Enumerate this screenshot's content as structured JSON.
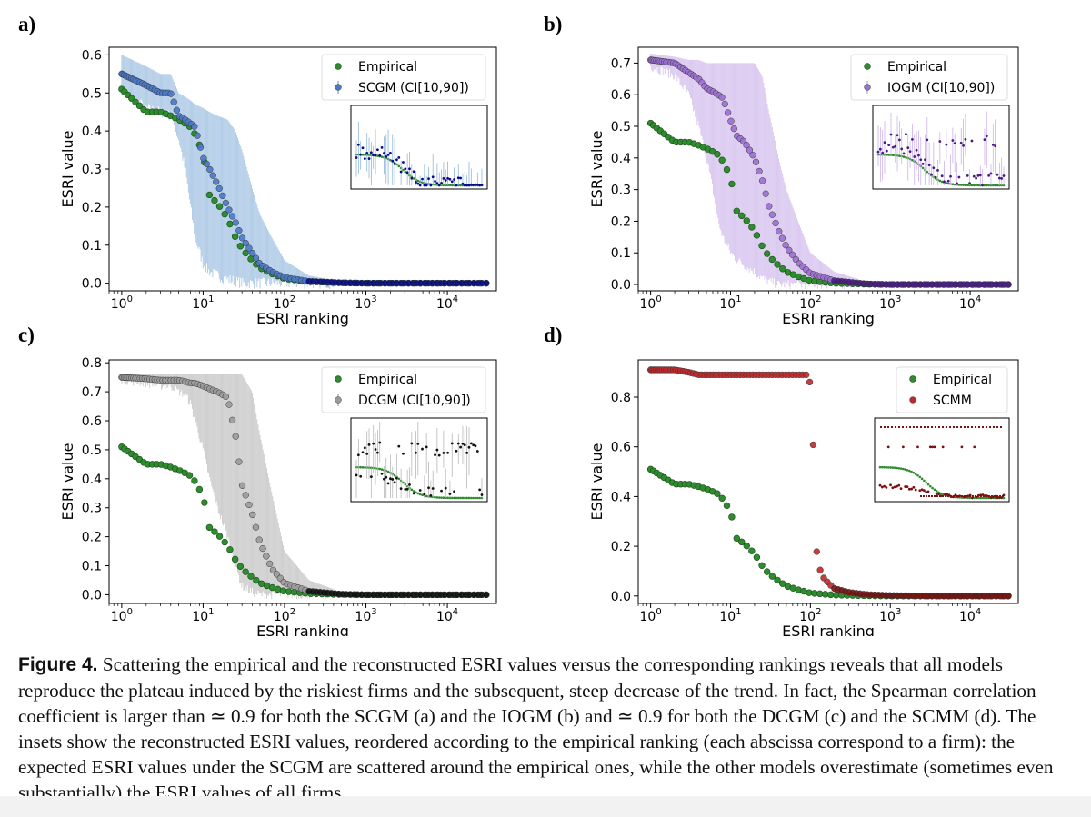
{
  "panel_labels": [
    "a)",
    "b)",
    "c)",
    "d)"
  ],
  "caption": {
    "label": "Figure 4.",
    "text": "Scattering the empirical and the reconstructed ESRI values versus the corresponding rankings reveals that all models reproduce the plateau induced by the riskiest firms and the subsequent, steep decrease of the trend. In fact, the Spearman correlation coefficient is larger than ≃ 0.9 for both the SCGM (a) and the IOGM (b) and ≃ 0.9 for both the DCGM (c) and the SCMM (d). The insets show the reconstructed ESRI values, reordered according to the empirical ranking (each abscissa correspond to a firm): the expected ESRI values under the SCGM are scattered around the empirical ones, while the other models overestimate (sometimes even substantially) the ESRI values of all firms."
  },
  "colors": {
    "empirical": "#2e8b2e",
    "scgm_point": "#4a78c8",
    "scgm_bar": "#8fb6dc",
    "scgm_dark": "#0a0a8c",
    "iogm_point": "#9b6fd0",
    "iogm_bar": "#cbb2ea",
    "iogm_dark": "#4b1a86",
    "dcgm_point": "#9a9a9a",
    "dcgm_bar": "#b8b8b8",
    "dcgm_dark": "#111111",
    "scmm_point": "#c0282b",
    "scmm_dark": "#7a1010"
  },
  "chart_data": [
    {
      "id": "a",
      "type": "scatter",
      "xlabel": "ESRI ranking",
      "ylabel": "ESRI value",
      "xscale": "log",
      "xlim": [
        0.7,
        40000
      ],
      "ylim": [
        -0.02,
        0.62
      ],
      "yticks": [
        0.0,
        0.1,
        0.2,
        0.3,
        0.4,
        0.5,
        0.6
      ],
      "ytick_labels": [
        "0.0",
        "0.1",
        "0.2",
        "0.3",
        "0.4",
        "0.5",
        "0.6"
      ],
      "xticks_exp": [
        "0",
        "1",
        "2",
        "3",
        "4"
      ],
      "legend": [
        "Empirical",
        "SCGM (CI[10,90])"
      ],
      "legend_position": "top-right",
      "series": [
        {
          "name": "Empirical",
          "x": [
            1,
            2,
            3,
            4,
            5,
            6,
            7,
            8,
            10,
            12,
            15,
            20,
            25,
            30,
            40,
            50,
            70,
            100,
            200,
            500,
            1000,
            3000,
            10000,
            30000
          ],
          "values": [
            0.51,
            0.45,
            0.45,
            0.44,
            0.43,
            0.42,
            0.41,
            0.39,
            0.34,
            0.23,
            0.21,
            0.17,
            0.12,
            0.09,
            0.06,
            0.04,
            0.025,
            0.012,
            0.004,
            0.001,
            0.0,
            0.0,
            0.0,
            0.0
          ]
        },
        {
          "name": "SCGM (CI[10,90])",
          "x": [
            1,
            2,
            3,
            4,
            5,
            6,
            7,
            8,
            10,
            12,
            15,
            20,
            25,
            30,
            40,
            50,
            70,
            100,
            200,
            500,
            1000,
            3000,
            10000,
            30000
          ],
          "values": [
            0.55,
            0.52,
            0.5,
            0.5,
            0.44,
            0.43,
            0.42,
            0.41,
            0.33,
            0.3,
            0.26,
            0.2,
            0.16,
            0.12,
            0.08,
            0.05,
            0.03,
            0.015,
            0.005,
            0.001,
            0.0,
            0.0,
            0.0,
            0.0
          ],
          "ci_low": [
            0.51,
            0.46,
            0.45,
            0.44,
            0.38,
            0.3,
            0.2,
            0.12,
            0.05,
            0.03,
            0.02,
            0.01,
            0.005,
            0.0,
            0.0,
            0.0,
            0.0,
            0.0,
            0.0,
            0.0,
            0.0,
            0.0,
            0.0,
            0.0
          ],
          "ci_high": [
            0.6,
            0.57,
            0.55,
            0.55,
            0.5,
            0.49,
            0.48,
            0.47,
            0.46,
            0.45,
            0.44,
            0.43,
            0.4,
            0.35,
            0.25,
            0.18,
            0.12,
            0.06,
            0.02,
            0.005,
            0.0,
            0.0,
            0.0,
            0.0
          ]
        }
      ]
    },
    {
      "id": "b",
      "type": "scatter",
      "xlabel": "ESRI ranking",
      "ylabel": "ESRI value",
      "xscale": "log",
      "xlim": [
        0.7,
        40000
      ],
      "ylim": [
        -0.02,
        0.75
      ],
      "yticks": [
        0.0,
        0.1,
        0.2,
        0.3,
        0.4,
        0.5,
        0.6,
        0.7
      ],
      "ytick_labels": [
        "0.0",
        "0.1",
        "0.2",
        "0.3",
        "0.4",
        "0.5",
        "0.6",
        "0.7"
      ],
      "xticks_exp": [
        "0",
        "1",
        "2",
        "3",
        "4"
      ],
      "legend": [
        "Empirical",
        "IOGM (CI[10,90])"
      ],
      "legend_position": "top-right",
      "series": [
        {
          "name": "Empirical",
          "x": [
            1,
            2,
            3,
            4,
            5,
            6,
            7,
            8,
            10,
            12,
            15,
            20,
            25,
            30,
            40,
            50,
            70,
            100,
            200,
            500,
            1000,
            3000,
            10000,
            30000
          ],
          "values": [
            0.51,
            0.45,
            0.45,
            0.44,
            0.43,
            0.42,
            0.41,
            0.39,
            0.34,
            0.23,
            0.21,
            0.17,
            0.12,
            0.09,
            0.06,
            0.04,
            0.025,
            0.012,
            0.004,
            0.001,
            0.0,
            0.0,
            0.0,
            0.0
          ]
        },
        {
          "name": "IOGM (CI[10,90])",
          "x": [
            1,
            2,
            3,
            4,
            5,
            6,
            7,
            8,
            10,
            12,
            15,
            20,
            25,
            30,
            40,
            50,
            70,
            100,
            200,
            500,
            1000,
            3000,
            10000,
            30000
          ],
          "values": [
            0.71,
            0.7,
            0.67,
            0.65,
            0.62,
            0.61,
            0.6,
            0.59,
            0.52,
            0.47,
            0.45,
            0.4,
            0.33,
            0.25,
            0.17,
            0.12,
            0.07,
            0.035,
            0.012,
            0.002,
            0.0,
            0.0,
            0.0,
            0.0
          ],
          "ci_low": [
            0.69,
            0.66,
            0.6,
            0.5,
            0.4,
            0.3,
            0.2,
            0.15,
            0.1,
            0.08,
            0.06,
            0.04,
            0.02,
            0.01,
            0.0,
            0.0,
            0.0,
            0.0,
            0.0,
            0.0,
            0.0,
            0.0,
            0.0,
            0.0
          ],
          "ci_high": [
            0.73,
            0.72,
            0.71,
            0.71,
            0.7,
            0.7,
            0.7,
            0.7,
            0.7,
            0.7,
            0.7,
            0.7,
            0.66,
            0.55,
            0.4,
            0.3,
            0.2,
            0.1,
            0.04,
            0.01,
            0.0,
            0.0,
            0.0,
            0.0
          ]
        }
      ]
    },
    {
      "id": "c",
      "type": "scatter",
      "xlabel": "ESRI ranking",
      "ylabel": "ESRI value",
      "xscale": "log",
      "xlim": [
        0.7,
        40000
      ],
      "ylim": [
        -0.03,
        0.81
      ],
      "yticks": [
        0.0,
        0.1,
        0.2,
        0.3,
        0.4,
        0.5,
        0.6,
        0.7,
        0.8
      ],
      "ytick_labels": [
        "0.0",
        "0.1",
        "0.2",
        "0.3",
        "0.4",
        "0.5",
        "0.6",
        "0.7",
        "0.8"
      ],
      "xticks_exp": [
        "0",
        "1",
        "2",
        "3",
        "4"
      ],
      "legend": [
        "Empirical",
        "DCGM (CI[10,90])"
      ],
      "legend_position": "top-right",
      "series": [
        {
          "name": "Empirical",
          "x": [
            1,
            2,
            3,
            4,
            5,
            6,
            7,
            8,
            10,
            12,
            15,
            20,
            25,
            30,
            40,
            50,
            70,
            100,
            200,
            500,
            1000,
            3000,
            10000,
            30000
          ],
          "values": [
            0.51,
            0.45,
            0.45,
            0.44,
            0.43,
            0.42,
            0.41,
            0.39,
            0.34,
            0.23,
            0.21,
            0.17,
            0.12,
            0.09,
            0.06,
            0.04,
            0.025,
            0.012,
            0.004,
            0.001,
            0.0,
            0.0,
            0.0,
            0.0
          ]
        },
        {
          "name": "DCGM (CI[10,90])",
          "x": [
            1,
            2,
            3,
            4,
            5,
            6,
            7,
            8,
            10,
            12,
            15,
            20,
            25,
            30,
            40,
            50,
            70,
            100,
            200,
            500,
            1000,
            3000,
            10000,
            30000
          ],
          "values": [
            0.75,
            0.745,
            0.74,
            0.74,
            0.74,
            0.735,
            0.73,
            0.73,
            0.72,
            0.71,
            0.7,
            0.68,
            0.55,
            0.38,
            0.28,
            0.18,
            0.09,
            0.04,
            0.012,
            0.002,
            0.0,
            0.0,
            0.0,
            0.0
          ],
          "ci_low": [
            0.74,
            0.73,
            0.72,
            0.72,
            0.7,
            0.69,
            0.66,
            0.6,
            0.5,
            0.4,
            0.3,
            0.2,
            0.1,
            0.03,
            0.01,
            0.0,
            0.0,
            0.0,
            0.0,
            0.0,
            0.0,
            0.0,
            0.0,
            0.0
          ],
          "ci_high": [
            0.76,
            0.76,
            0.76,
            0.76,
            0.76,
            0.76,
            0.76,
            0.76,
            0.76,
            0.76,
            0.76,
            0.76,
            0.76,
            0.76,
            0.7,
            0.55,
            0.35,
            0.15,
            0.05,
            0.01,
            0.0,
            0.0,
            0.0,
            0.0
          ]
        }
      ]
    },
    {
      "id": "d",
      "type": "scatter",
      "xlabel": "ESRI ranking",
      "ylabel": "ESRI value",
      "xscale": "log",
      "xlim": [
        0.7,
        40000
      ],
      "ylim": [
        -0.03,
        0.95
      ],
      "yticks": [
        0.0,
        0.2,
        0.4,
        0.6,
        0.8
      ],
      "ytick_labels": [
        "0.0",
        "0.2",
        "0.4",
        "0.6",
        "0.8"
      ],
      "xticks_exp": [
        "0",
        "1",
        "2",
        "3",
        "4"
      ],
      "legend": [
        "Empirical",
        "SCMM"
      ],
      "legend_position": "top-right",
      "series": [
        {
          "name": "Empirical",
          "x": [
            1,
            2,
            3,
            4,
            5,
            6,
            7,
            8,
            10,
            12,
            15,
            20,
            25,
            30,
            40,
            50,
            70,
            100,
            200,
            500,
            1000,
            3000,
            10000,
            30000
          ],
          "values": [
            0.51,
            0.45,
            0.45,
            0.44,
            0.43,
            0.42,
            0.41,
            0.39,
            0.34,
            0.23,
            0.21,
            0.17,
            0.12,
            0.09,
            0.06,
            0.04,
            0.025,
            0.012,
            0.004,
            0.001,
            0.0,
            0.0,
            0.0,
            0.0
          ]
        },
        {
          "name": "SCMM",
          "x": [
            1,
            2,
            3,
            4,
            5,
            6,
            7,
            8,
            10,
            15,
            20,
            30,
            50,
            70,
            90,
            100,
            105,
            110,
            115,
            120,
            140,
            170,
            200,
            300,
            500,
            1000,
            3000,
            10000,
            30000
          ],
          "values": [
            0.91,
            0.91,
            0.9,
            0.89,
            0.89,
            0.89,
            0.89,
            0.89,
            0.89,
            0.89,
            0.89,
            0.89,
            0.89,
            0.89,
            0.89,
            0.88,
            0.8,
            0.55,
            0.3,
            0.15,
            0.08,
            0.05,
            0.03,
            0.015,
            0.006,
            0.002,
            0.0,
            0.0,
            0.0
          ]
        }
      ]
    }
  ]
}
